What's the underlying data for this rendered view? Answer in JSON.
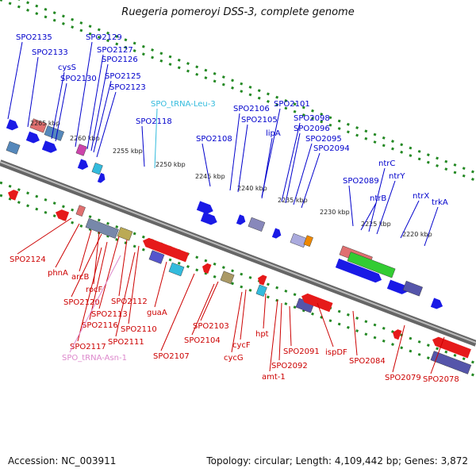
{
  "title": "Ruegeria pomeroyi DSS-3, complete genome",
  "accession": "Accession: NC_003911",
  "topology": "Topology: circular; Length: 4,109,442 bp; Genes: 3,872",
  "colors": {
    "forward": "#1a1ae6",
    "reverse": "#e61a1a",
    "trna_forward": "#33bbdd",
    "trna_reverse": "#dd88cc",
    "backbone": "#888888",
    "ticks": "#228822",
    "highlight": "#33cc33"
  },
  "scale_labels": [
    "2265 kbp",
    "2260 kbp",
    "2255 kbp",
    "2250 kbp",
    "2245 kbp",
    "2240 kbp",
    "2235 kbp",
    "2230 kbp",
    "2225 kbp",
    "2220 kbp"
  ],
  "forward_genes": [
    "SPO2135",
    "SPO2133",
    "cysS",
    "SPO2130",
    "SPO2129",
    "SPO2127",
    "SPO2126",
    "SPO2125",
    "SPO2123",
    "SPO_tRNA-Leu-3",
    "SPO2118",
    "SPO2108",
    "SPO2106",
    "SPO2105",
    "SPO2101",
    "lipA",
    "SPO2098",
    "SPO2096",
    "SPO2095",
    "SPO2094",
    "SPO2089",
    "ntrB",
    "ntrC",
    "ntrY",
    "ntrX",
    "trkA"
  ],
  "reverse_genes": [
    "SPO2124",
    "phnA",
    "arcB",
    "rocF",
    "SPO2120",
    "SPO2113",
    "SPO2112",
    "SPO2116",
    "SPO2110",
    "SPO2117",
    "SPO2111",
    "guaA",
    "SPO_tRNA-Asn-1",
    "SPO2107",
    "SPO2103",
    "SPO2104",
    "cycF",
    "cycG",
    "hpt",
    "amt-1",
    "SPO2092",
    "SPO2091",
    "ispDF",
    "SPO2084",
    "SPO2079",
    "SPO2078"
  ]
}
